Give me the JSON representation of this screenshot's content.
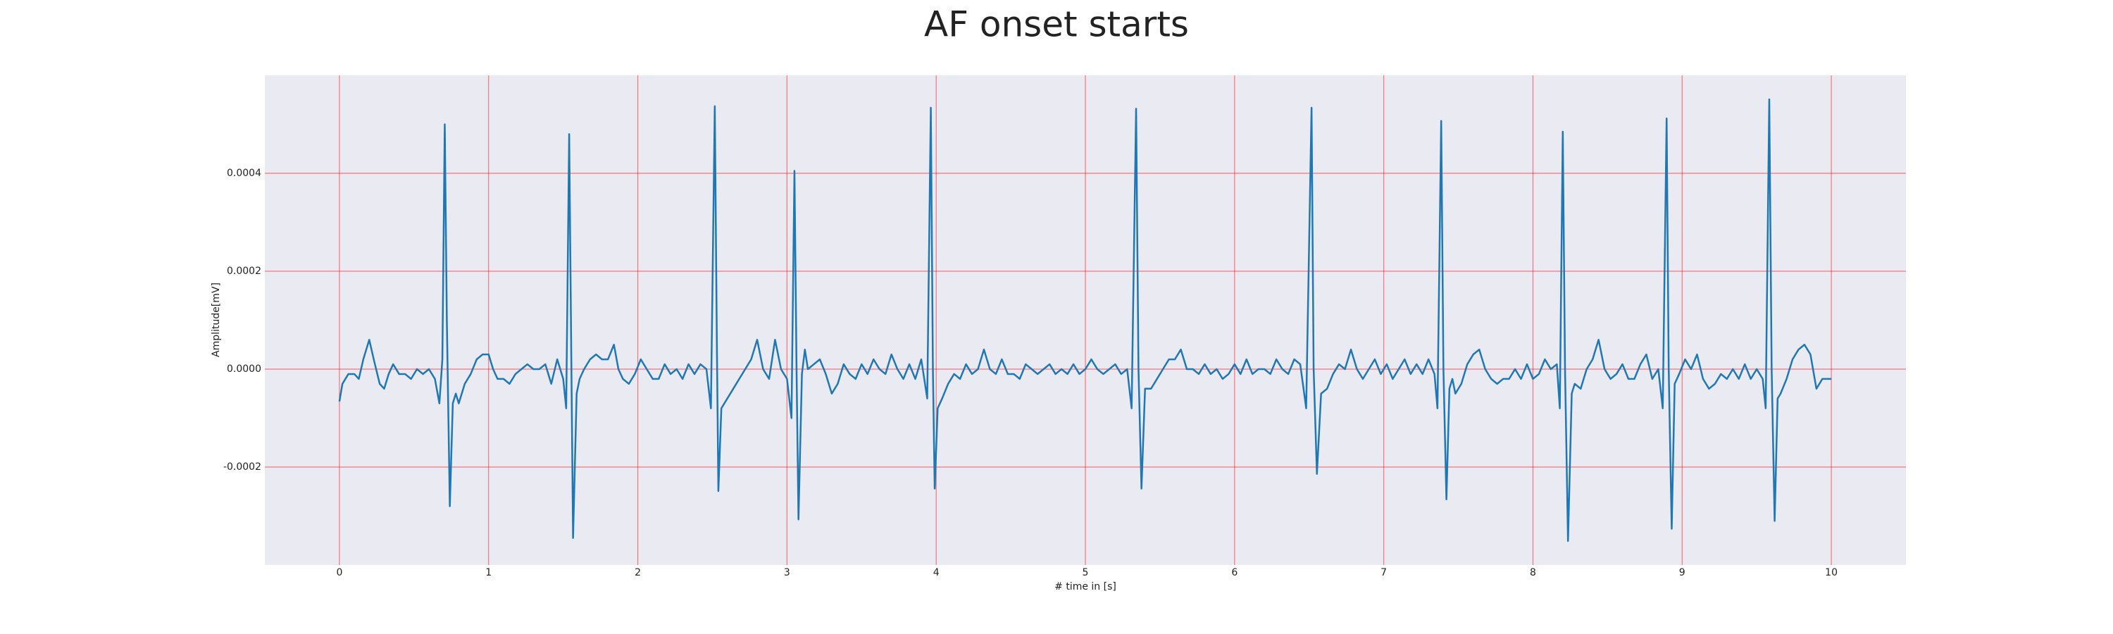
{
  "chart_data": {
    "type": "line",
    "title": "AF onset starts",
    "x_label": "# time in [s]",
    "y_label": "Amplitude[mV]",
    "color": "#1f77b4",
    "grid": true,
    "grid_color": "#ff0000",
    "xlim": [
      -0.5,
      10.5
    ],
    "xticks": [
      0,
      1,
      2,
      3,
      4,
      5,
      6,
      7,
      8,
      9,
      10
    ],
    "ylim": [
      -0.0004,
      0.0006
    ],
    "yticks": [
      -0.0002,
      {
        "value": 0,
        "label": "0.0000"
      },
      0.0002,
      0.0004
    ],
    "x": [
      0,
      0.02,
      0.06,
      0.1,
      0.13,
      0.16,
      0.2,
      0.23,
      0.27,
      0.3,
      0.33,
      0.36,
      0.4,
      0.44,
      0.48,
      0.52,
      0.56,
      0.6,
      0.64,
      0.67,
      0.69,
      0.706,
      0.72,
      0.74,
      0.76,
      0.78,
      0.8,
      0.84,
      0.88,
      0.92,
      0.96,
      1.0,
      1.03,
      1.06,
      1.1,
      1.14,
      1.18,
      1.22,
      1.26,
      1.3,
      1.34,
      1.38,
      1.42,
      1.46,
      1.5,
      1.52,
      1.54,
      1.555,
      1.566,
      1.59,
      1.61,
      1.64,
      1.68,
      1.72,
      1.76,
      1.8,
      1.84,
      1.87,
      1.9,
      1.94,
      1.98,
      2.02,
      2.06,
      2.1,
      2.14,
      2.18,
      2.22,
      2.26,
      2.3,
      2.34,
      2.38,
      2.42,
      2.46,
      2.49,
      2.516,
      2.53,
      2.54,
      2.56,
      2.6,
      2.64,
      2.68,
      2.72,
      2.76,
      2.8,
      2.84,
      2.88,
      2.92,
      2.96,
      3.0,
      3.03,
      3.05,
      3.064,
      3.077,
      3.1,
      3.12,
      3.14,
      3.18,
      3.22,
      3.26,
      3.3,
      3.34,
      3.38,
      3.42,
      3.46,
      3.5,
      3.54,
      3.58,
      3.62,
      3.66,
      3.7,
      3.74,
      3.78,
      3.82,
      3.86,
      3.9,
      3.94,
      3.964,
      3.978,
      3.99,
      4.01,
      4.04,
      4.08,
      4.12,
      4.16,
      4.2,
      4.24,
      4.28,
      4.32,
      4.36,
      4.4,
      4.44,
      4.48,
      4.52,
      4.56,
      4.6,
      4.64,
      4.68,
      4.72,
      4.76,
      4.8,
      4.84,
      4.88,
      4.92,
      4.96,
      5.0,
      5.04,
      5.08,
      5.12,
      5.16,
      5.2,
      5.24,
      5.28,
      5.31,
      5.34,
      5.356,
      5.376,
      5.4,
      5.44,
      5.48,
      5.52,
      5.56,
      5.6,
      5.64,
      5.68,
      5.72,
      5.76,
      5.8,
      5.84,
      5.88,
      5.92,
      5.96,
      6.0,
      6.04,
      6.08,
      6.12,
      6.16,
      6.2,
      6.24,
      6.28,
      6.32,
      6.36,
      6.4,
      6.44,
      6.48,
      6.516,
      6.53,
      6.552,
      6.58,
      6.62,
      6.66,
      6.7,
      6.74,
      6.78,
      6.82,
      6.86,
      6.9,
      6.94,
      6.98,
      7.02,
      7.06,
      7.1,
      7.14,
      7.18,
      7.22,
      7.26,
      7.3,
      7.34,
      7.36,
      7.385,
      7.4,
      7.42,
      7.44,
      7.46,
      7.48,
      7.52,
      7.56,
      7.6,
      7.64,
      7.68,
      7.72,
      7.76,
      7.8,
      7.84,
      7.88,
      7.92,
      7.96,
      8.0,
      8.04,
      8.08,
      8.12,
      8.16,
      8.18,
      8.2,
      8.215,
      8.235,
      8.26,
      8.28,
      8.32,
      8.36,
      8.4,
      8.44,
      8.48,
      8.52,
      8.56,
      8.6,
      8.64,
      8.68,
      8.72,
      8.76,
      8.8,
      8.84,
      8.87,
      8.896,
      8.91,
      8.93,
      8.95,
      8.98,
      9.02,
      9.06,
      9.1,
      9.14,
      9.18,
      9.22,
      9.26,
      9.3,
      9.34,
      9.38,
      9.42,
      9.46,
      9.5,
      9.54,
      9.56,
      9.584,
      9.6,
      9.62,
      9.64,
      9.66,
      9.7,
      9.74,
      9.78,
      9.82,
      9.86,
      9.9,
      9.94,
      9.98,
      10.0
    ],
    "values": [
      -6.6e-05,
      -3e-05,
      -1e-05,
      -1e-05,
      -2e-05,
      2e-05,
      6e-05,
      2e-05,
      -3e-05,
      -4e-05,
      -1e-05,
      1e-05,
      -1e-05,
      -1e-05,
      -2e-05,
      0,
      -1e-05,
      0,
      -2e-05,
      -7e-05,
      2e-05,
      0.0005,
      0.0001,
      -0.00028,
      -7e-05,
      -5e-05,
      -7e-05,
      -3e-05,
      -1e-05,
      2e-05,
      3e-05,
      3e-05,
      0,
      -2e-05,
      -2e-05,
      -3e-05,
      -1e-05,
      0,
      1e-05,
      0,
      0,
      1e-05,
      -3e-05,
      2e-05,
      -2e-05,
      -8e-05,
      0.00048,
      0,
      -0.000345,
      -5e-05,
      -2e-05,
      0,
      2e-05,
      3e-05,
      2e-05,
      2e-05,
      5e-05,
      0,
      -2e-05,
      -3e-05,
      -1e-05,
      2e-05,
      0,
      -2e-05,
      -2e-05,
      1e-05,
      -1e-05,
      0,
      -2e-05,
      1e-05,
      -1e-05,
      1e-05,
      0,
      -8e-05,
      0.000537,
      5e-05,
      -0.000249,
      -8e-05,
      -6e-05,
      -4e-05,
      -2e-05,
      0,
      2e-05,
      6e-05,
      0,
      -2e-05,
      6e-05,
      0,
      -2e-05,
      -0.0001,
      0.000405,
      0,
      -0.000307,
      -1e-05,
      4e-05,
      0,
      1e-05,
      2e-05,
      -1e-05,
      -5e-05,
      -3e-05,
      1e-05,
      -1e-05,
      -2e-05,
      1e-05,
      -1e-05,
      2e-05,
      0,
      -1e-05,
      3e-05,
      0,
      -2e-05,
      1e-05,
      -2e-05,
      2e-05,
      -6e-05,
      0.000534,
      0,
      -0.000244,
      -8e-05,
      -6e-05,
      -3e-05,
      -1e-05,
      -2e-05,
      1e-05,
      -1e-05,
      0,
      4e-05,
      0,
      -1e-05,
      2e-05,
      -1e-05,
      -1e-05,
      -2e-05,
      1e-05,
      0,
      -1e-05,
      0,
      1e-05,
      -1e-05,
      0,
      -1e-05,
      1e-05,
      -1e-05,
      0,
      2e-05,
      0,
      -1e-05,
      0,
      1e-05,
      -1e-05,
      0,
      -8e-05,
      0.000532,
      0,
      -0.000244,
      -4e-05,
      -4e-05,
      -2e-05,
      0,
      2e-05,
      2e-05,
      4e-05,
      0,
      0,
      -1e-05,
      1e-05,
      -1e-05,
      0,
      -2e-05,
      -1e-05,
      1e-05,
      -1e-05,
      2e-05,
      -1e-05,
      0,
      0,
      -1e-05,
      2e-05,
      0,
      -1e-05,
      2e-05,
      1e-05,
      -8e-05,
      0.000534,
      0,
      -0.000214,
      -5e-05,
      -4e-05,
      -1e-05,
      1e-05,
      0,
      4e-05,
      0,
      -2e-05,
      0,
      2e-05,
      -1e-05,
      1e-05,
      -2e-05,
      0,
      2e-05,
      -1e-05,
      1e-05,
      -1e-05,
      2e-05,
      -1e-05,
      -8e-05,
      0.000507,
      0,
      -0.000266,
      -4e-05,
      -2e-05,
      -5e-05,
      -3e-05,
      1e-05,
      3e-05,
      4e-05,
      0,
      -2e-05,
      -3e-05,
      -2e-05,
      -2e-05,
      0,
      -2e-05,
      1e-05,
      -2e-05,
      -1e-05,
      2e-05,
      0,
      1e-05,
      -8e-05,
      0.000485,
      0,
      -0.000351,
      -5e-05,
      -3e-05,
      -4e-05,
      0,
      2e-05,
      6e-05,
      0,
      -2e-05,
      -1e-05,
      1e-05,
      -2e-05,
      -2e-05,
      1e-05,
      3e-05,
      -2e-05,
      0,
      -8e-05,
      0.000512,
      0,
      -0.000326,
      -3e-05,
      -1e-05,
      2e-05,
      0,
      3e-05,
      -2e-05,
      -4e-05,
      -3e-05,
      -1e-05,
      -2e-05,
      0,
      -2e-05,
      1e-05,
      -2e-05,
      0,
      -2e-05,
      -8e-05,
      0.000551,
      0,
      -0.00031,
      -6e-05,
      -5e-05,
      -2e-05,
      2e-05,
      4e-05,
      5e-05,
      3e-05,
      -4e-05,
      -2e-05,
      -2e-05,
      -2e-05
    ]
  }
}
